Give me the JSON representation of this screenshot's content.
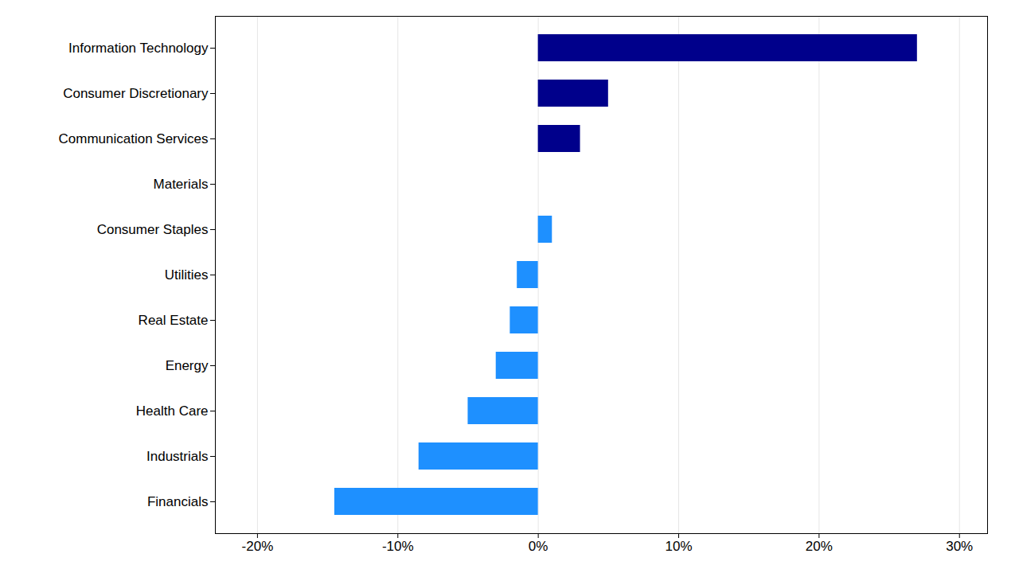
{
  "chart_data": {
    "type": "bar",
    "orientation": "horizontal",
    "categories": [
      "Information Technology",
      "Consumer Discretionary",
      "Communication Services",
      "Materials",
      "Consumer Staples",
      "Utilities",
      "Real Estate",
      "Energy",
      "Health Care",
      "Industrials",
      "Financials"
    ],
    "values": [
      27.0,
      5.0,
      3.0,
      0.0,
      1.0,
      -1.5,
      -2.0,
      -3.0,
      -5.0,
      -8.5,
      -14.5
    ],
    "colors": [
      "#00008B",
      "#00008B",
      "#00008B",
      "#1E90FF",
      "#1E90FF",
      "#1E90FF",
      "#1E90FF",
      "#1E90FF",
      "#1E90FF",
      "#1E90FF",
      "#1E90FF"
    ],
    "xlim": [
      -23,
      32
    ],
    "xticks": [
      {
        "value": -20,
        "label": "-20%"
      },
      {
        "value": -10,
        "label": "-10%"
      },
      {
        "value": 0,
        "label": "0%"
      },
      {
        "value": 10,
        "label": "10%"
      },
      {
        "value": 20,
        "label": "20%"
      },
      {
        "value": 30,
        "label": "30%"
      }
    ],
    "grid": true
  }
}
